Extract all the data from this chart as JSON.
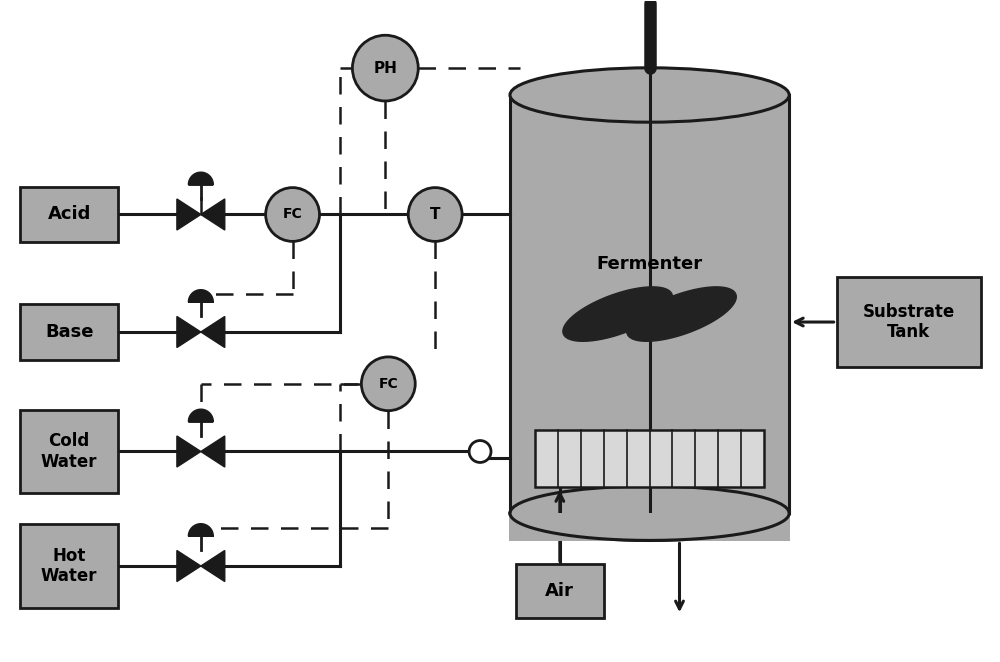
{
  "bg": "#ffffff",
  "gray": "#aaaaaa",
  "dark": "#1a1a1a",
  "coil_bg": "#d8d8d8",
  "white": "#ffffff",
  "fermenter_label": "Fermenter",
  "acid_label": "Acid",
  "base_label": "Base",
  "cold_label": "Cold\nWater",
  "hot_label": "Hot\nWater",
  "air_label": "Air",
  "substrate_label": "Substrate\nTank",
  "ph_label": "PH",
  "fc_label": "FC",
  "t_label": "T",
  "lw": 2.2,
  "dlw": 1.8
}
